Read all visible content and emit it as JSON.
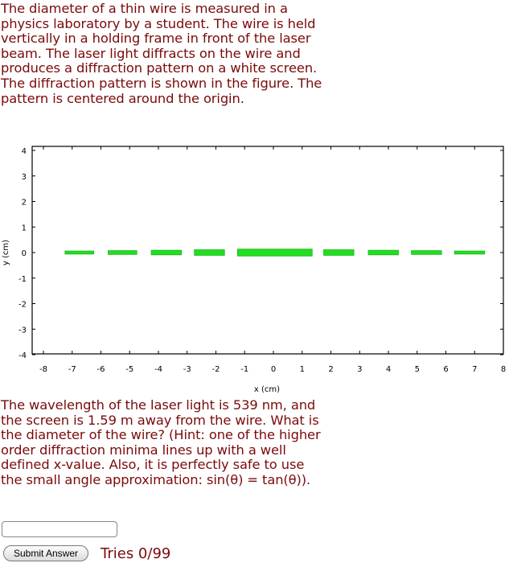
{
  "question_intro": "The diameter of a thin wire is measured in a physics laboratory by a student. The wire is held vertically in a holding frame in front of the laser beam. The laser light diffracts on the wire and produces a diffraction pattern on a white screen. The diffraction pattern is shown in the figure. The pattern is centered around the origin.",
  "question_main": "The wavelength of the laser light is 539 nm, and the screen is 1.59 m away from the wire. What is the diameter of the wire? (Hint: one of the higher order diffraction minima lines up with a well defined x-value. Also, it is perfectly safe to use the small angle approximation: sin(θ) = tan(θ)).",
  "answer": {
    "value": "",
    "placeholder": ""
  },
  "submit_label": "Submit Answer",
  "tries": "Tries 0/99",
  "chart_data": {
    "type": "bar",
    "xlabel": "x (cm)",
    "ylabel": "y (cm)",
    "xlim": [
      -8,
      8
    ],
    "ylim": [
      -4,
      4
    ],
    "xticks": [
      "-8",
      "-7",
      "-6",
      "-5",
      "-4",
      "-3",
      "-2",
      "-1",
      "0",
      "1",
      "2",
      "3",
      "4",
      "5",
      "6",
      "7",
      "8"
    ],
    "yticks": [
      "4",
      "3",
      "2",
      "1",
      "0",
      "-1",
      "-2",
      "-3",
      "-4"
    ],
    "grid": false,
    "color": "#22dd22",
    "segments": [
      {
        "x0": -7.25,
        "x1": -6.25,
        "thickness": 0.12
      },
      {
        "x0": -5.75,
        "x1": -4.75,
        "thickness": 0.15
      },
      {
        "x0": -4.25,
        "x1": -3.2,
        "thickness": 0.18
      },
      {
        "x0": -2.75,
        "x1": -1.7,
        "thickness": 0.22
      },
      {
        "x0": -1.25,
        "x1": 1.35,
        "thickness": 0.27
      },
      {
        "x0": 1.75,
        "x1": 2.8,
        "thickness": 0.22
      },
      {
        "x0": 3.3,
        "x1": 4.35,
        "thickness": 0.18
      },
      {
        "x0": 4.8,
        "x1": 5.85,
        "thickness": 0.15
      },
      {
        "x0": 6.3,
        "x1": 7.35,
        "thickness": 0.12
      }
    ]
  }
}
